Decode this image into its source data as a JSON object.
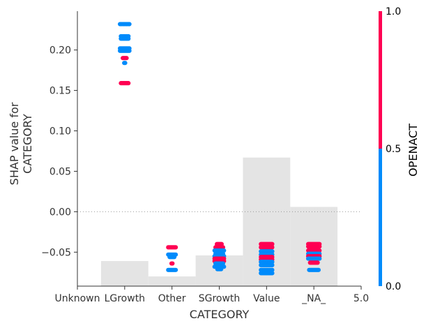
{
  "chart_data": {
    "type": "scatter",
    "title": "",
    "xlabel": "CATEGORY",
    "ylabel_lines": [
      "SHAP value for",
      "CATEGORY"
    ],
    "x_tick_labels": [
      "Unknown",
      "LGrowth",
      "Other",
      "SGrowth",
      "Value",
      "_NA_",
      "5.0"
    ],
    "x_tick_positions": [
      0,
      1,
      2,
      3,
      4,
      5,
      6
    ],
    "xlim": [
      0,
      6
    ],
    "y_ticks": [
      -0.05,
      0.0,
      0.05,
      0.1,
      0.15,
      0.2
    ],
    "y_tick_labels": [
      "−0.05",
      "0.00",
      "0.05",
      "0.10",
      "0.15",
      "0.20"
    ],
    "ylim": [
      -0.092,
      0.248
    ],
    "zero_line": 0.0,
    "histogram": {
      "color": "#e4e4e4",
      "bins": [
        {
          "x0": 0.5,
          "x1": 1.5,
          "top": -0.061
        },
        {
          "x0": 1.5,
          "x1": 2.5,
          "top": -0.08
        },
        {
          "x0": 2.5,
          "x1": 3.5,
          "top": -0.054
        },
        {
          "x0": 3.5,
          "x1": 4.5,
          "top": 0.067
        },
        {
          "x0": 4.5,
          "x1": 5.5,
          "top": 0.006
        }
      ]
    },
    "colorbar": {
      "label": "OPENACT",
      "tick_labels": [
        "0.0",
        "0.5",
        "1.0"
      ],
      "low_color": "#008bfb",
      "high_color": "#ff0052",
      "split": 0.5
    },
    "point_colors": {
      "low": "#008bfb",
      "high": "#ff0052"
    },
    "groups": [
      {
        "category": "LGrowth",
        "x": 1,
        "rows": [
          {
            "y": 0.232,
            "count": 11,
            "color": "low"
          },
          {
            "y": 0.217,
            "count": 9,
            "color": "low"
          },
          {
            "y": 0.214,
            "count": 9,
            "color": "low"
          },
          {
            "y": 0.202,
            "count": 11,
            "color": "low"
          },
          {
            "y": 0.199,
            "count": 11,
            "color": "low"
          },
          {
            "y": 0.19,
            "count": 5,
            "color": "high"
          },
          {
            "y": 0.184,
            "count": 2,
            "color": "low"
          },
          {
            "y": 0.159,
            "count": 9,
            "color": "high"
          }
        ]
      },
      {
        "category": "Other",
        "x": 2,
        "rows": [
          {
            "y": -0.044,
            "count": 9,
            "color": "high"
          },
          {
            "y": -0.053,
            "count": 9,
            "color": "low"
          },
          {
            "y": -0.056,
            "count": 6,
            "color": "low"
          },
          {
            "y": -0.064,
            "count": 2,
            "color": "high"
          },
          {
            "y": -0.072,
            "count": 9,
            "color": "low"
          }
        ]
      },
      {
        "category": "SGrowth",
        "x": 3,
        "rows": [
          {
            "y": -0.04,
            "count": 6,
            "color": "high"
          },
          {
            "y": -0.044,
            "count": 9,
            "color": "high"
          },
          {
            "y": -0.048,
            "count": 11,
            "color": "low"
          },
          {
            "y": -0.052,
            "count": 9,
            "color": "low"
          },
          {
            "y": -0.055,
            "count": 11,
            "color": "low"
          },
          {
            "y": -0.058,
            "count": 11,
            "color": "high"
          },
          {
            "y": -0.061,
            "count": 11,
            "color": "high"
          },
          {
            "y": -0.064,
            "count": 9,
            "color": "low"
          },
          {
            "y": -0.068,
            "count": 11,
            "color": "low"
          },
          {
            "y": -0.071,
            "count": 5,
            "color": "low"
          }
        ]
      },
      {
        "category": "Value",
        "x": 4,
        "rows": [
          {
            "y": -0.04,
            "count": 13,
            "color": "high"
          },
          {
            "y": -0.044,
            "count": 13,
            "color": "high"
          },
          {
            "y": -0.049,
            "count": 13,
            "color": "low"
          },
          {
            "y": -0.053,
            "count": 13,
            "color": "low"
          },
          {
            "y": -0.056,
            "count": 13,
            "color": "high"
          },
          {
            "y": -0.059,
            "count": 13,
            "color": "high"
          },
          {
            "y": -0.062,
            "count": 13,
            "color": "low"
          },
          {
            "y": -0.066,
            "count": 13,
            "color": "low"
          },
          {
            "y": -0.072,
            "count": 13,
            "color": "low"
          },
          {
            "y": -0.076,
            "count": 13,
            "color": "low"
          }
        ]
      },
      {
        "category": "_NA_",
        "x": 5,
        "rows": [
          {
            "y": -0.04,
            "count": 13,
            "color": "high"
          },
          {
            "y": -0.043,
            "count": 13,
            "color": "high"
          },
          {
            "y": -0.048,
            "count": 13,
            "color": "high"
          },
          {
            "y": -0.052,
            "count": 13,
            "color": "low"
          },
          {
            "y": -0.055,
            "count": 13,
            "color": "high"
          },
          {
            "y": -0.058,
            "count": 13,
            "color": "low"
          },
          {
            "y": -0.063,
            "count": 9,
            "color": "high"
          },
          {
            "y": -0.072,
            "count": 11,
            "color": "low"
          }
        ]
      }
    ]
  }
}
